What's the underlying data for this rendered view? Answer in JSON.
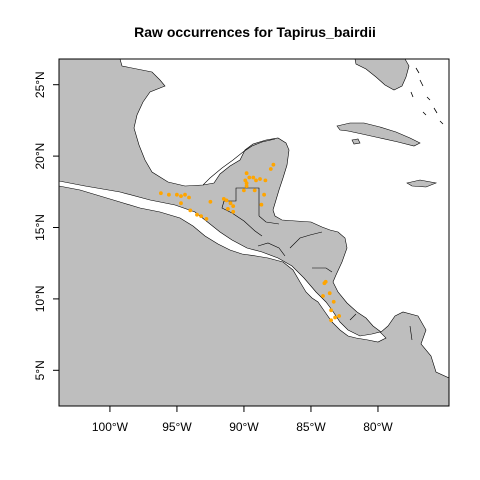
{
  "title": "Raw occurrences for Tapirus_bairdii",
  "colors": {
    "land": "#bebebe",
    "sea": "#ffffff",
    "border": "#000000",
    "points": "#ffa500",
    "frame": "#000000"
  },
  "chart_data": {
    "type": "scatter",
    "title": "Raw occurrences for Tapirus_bairdii",
    "xlim": [
      -103.8,
      -74.7
    ],
    "ylim": [
      2.5,
      26.8
    ],
    "x_ticks": [
      {
        "value": -100,
        "label": "100°W"
      },
      {
        "value": -95,
        "label": "95°W"
      },
      {
        "value": -90,
        "label": "90°W"
      },
      {
        "value": -85,
        "label": "85°W"
      },
      {
        "value": -80,
        "label": "80°W"
      }
    ],
    "y_ticks": [
      {
        "value": 5,
        "label": "5°N"
      },
      {
        "value": 10,
        "label": "10°N"
      },
      {
        "value": 15,
        "label": "15°N"
      },
      {
        "value": 20,
        "label": "20°N"
      },
      {
        "value": 25,
        "label": "25°N"
      }
    ],
    "points": [
      {
        "x": -96.2,
        "y": 17.4
      },
      {
        "x": -95.6,
        "y": 17.3
      },
      {
        "x": -95.0,
        "y": 17.3
      },
      {
        "x": -94.7,
        "y": 17.2
      },
      {
        "x": -94.4,
        "y": 17.3
      },
      {
        "x": -94.1,
        "y": 17.1
      },
      {
        "x": -94.7,
        "y": 16.7
      },
      {
        "x": -94.0,
        "y": 16.2
      },
      {
        "x": -93.5,
        "y": 15.9
      },
      {
        "x": -93.2,
        "y": 15.8
      },
      {
        "x": -92.8,
        "y": 15.6
      },
      {
        "x": -92.5,
        "y": 16.8
      },
      {
        "x": -91.3,
        "y": 16.9
      },
      {
        "x": -91.0,
        "y": 16.7
      },
      {
        "x": -90.8,
        "y": 16.5
      },
      {
        "x": -91.2,
        "y": 16.3
      },
      {
        "x": -90.8,
        "y": 16.1
      },
      {
        "x": -91.5,
        "y": 17.0
      },
      {
        "x": -89.8,
        "y": 18.8
      },
      {
        "x": -89.6,
        "y": 18.5
      },
      {
        "x": -89.9,
        "y": 18.3
      },
      {
        "x": -89.8,
        "y": 18.1
      },
      {
        "x": -89.3,
        "y": 18.5
      },
      {
        "x": -89.1,
        "y": 18.3
      },
      {
        "x": -88.8,
        "y": 18.4
      },
      {
        "x": -88.4,
        "y": 18.3
      },
      {
        "x": -89.8,
        "y": 17.9
      },
      {
        "x": -90.0,
        "y": 17.6
      },
      {
        "x": -89.2,
        "y": 17.6
      },
      {
        "x": -88.5,
        "y": 17.3
      },
      {
        "x": -88.7,
        "y": 16.6
      },
      {
        "x": -88.0,
        "y": 19.1
      },
      {
        "x": -87.8,
        "y": 19.4
      },
      {
        "x": -84.0,
        "y": 11.1
      },
      {
        "x": -83.9,
        "y": 11.2
      },
      {
        "x": -84.1,
        "y": 10.2
      },
      {
        "x": -83.6,
        "y": 10.4
      },
      {
        "x": -83.3,
        "y": 9.8
      },
      {
        "x": -83.5,
        "y": 9.2
      },
      {
        "x": -83.2,
        "y": 8.7
      },
      {
        "x": -82.9,
        "y": 8.8
      },
      {
        "x": -83.5,
        "y": 8.5
      }
    ]
  }
}
